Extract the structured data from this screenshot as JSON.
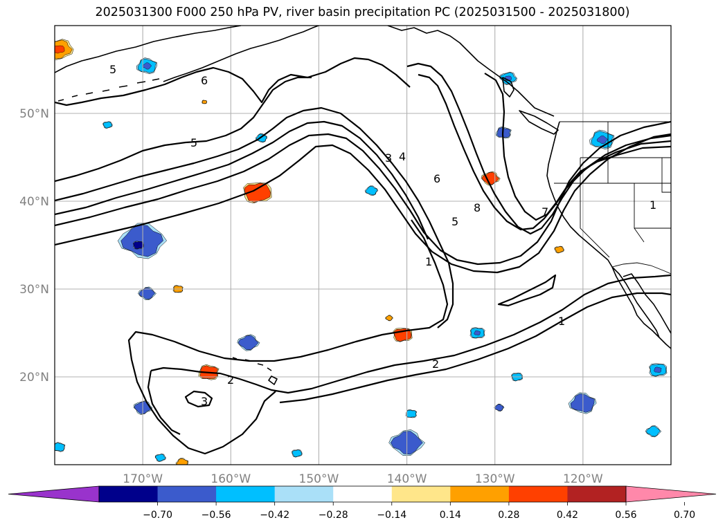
{
  "title": "2025031300 F000 250 hPa PV, river basin precipitation PC (2025031500 - 2025031800)",
  "map": {
    "lon_range": [
      -180,
      -110
    ],
    "lat_range": [
      10,
      60
    ],
    "lat_ticks": [
      {
        "value": 20,
        "label": "20°N"
      },
      {
        "value": 30,
        "label": "30°N"
      },
      {
        "value": 40,
        "label": "40°N"
      },
      {
        "value": 50,
        "label": "50°N"
      }
    ],
    "lon_ticks": [
      {
        "value": -170,
        "label": "170°W"
      },
      {
        "value": -160,
        "label": "160°W"
      },
      {
        "value": -150,
        "label": "150°W"
      },
      {
        "value": -140,
        "label": "140°W"
      },
      {
        "value": -130,
        "label": "130°W"
      },
      {
        "value": -120,
        "label": "120°W"
      }
    ],
    "gridlines": true,
    "tick_color": "#808080"
  },
  "pv_contour_labels": [
    "5",
    "6",
    "5",
    "3",
    "4",
    "6",
    "8",
    "5",
    "1",
    "7",
    "1",
    "2",
    "1",
    "2",
    "3"
  ],
  "colorbar": {
    "ticks": [
      "−0.70",
      "−0.56",
      "−0.42",
      "−0.28",
      "−0.14",
      "0.14",
      "0.28",
      "0.42",
      "0.56",
      "0.70"
    ],
    "colors": [
      "#9933cc",
      "#00008b",
      "#3b5bcc",
      "#00bfff",
      "#aae0f8",
      "#ffffff",
      "#ffe68a",
      "#ffa000",
      "#ff4000",
      "#b22222",
      "#ff88aa"
    ],
    "extend": "both"
  },
  "blobs": [
    {
      "lon": -179.5,
      "lat": 57.3,
      "level": 7,
      "size": 1.3
    },
    {
      "lon": -169.5,
      "lat": 55.4,
      "level": 3,
      "size": 1.0
    },
    {
      "lon": -174,
      "lat": 48.7,
      "level": 3,
      "size": 0.45
    },
    {
      "lon": -156.5,
      "lat": 47.2,
      "level": 3,
      "size": 0.55
    },
    {
      "lon": -157,
      "lat": 41.0,
      "level": 8,
      "size": 1.4
    },
    {
      "lon": -170,
      "lat": 35.5,
      "level": 2,
      "size": 2.2
    },
    {
      "lon": -170.5,
      "lat": 35.0,
      "level": 1,
      "size": 0.55
    },
    {
      "lon": -169.5,
      "lat": 29.5,
      "level": 2,
      "size": 0.8
    },
    {
      "lon": -166,
      "lat": 30.0,
      "level": 7,
      "size": 0.5
    },
    {
      "lon": -158,
      "lat": 23.9,
      "level": 2,
      "size": 1.0
    },
    {
      "lon": -162.5,
      "lat": 20.5,
      "level": 8,
      "size": 1.0
    },
    {
      "lon": -170,
      "lat": 16.5,
      "level": 2,
      "size": 0.85
    },
    {
      "lon": -179.5,
      "lat": 12.0,
      "level": 3,
      "size": 0.6
    },
    {
      "lon": -168,
      "lat": 10.8,
      "level": 3,
      "size": 0.5
    },
    {
      "lon": -165.5,
      "lat": 10.2,
      "level": 7,
      "size": 0.6
    },
    {
      "lon": -152.5,
      "lat": 11.3,
      "level": 3,
      "size": 0.5
    },
    {
      "lon": -144,
      "lat": 41.2,
      "level": 3,
      "size": 0.6
    },
    {
      "lon": -140.5,
      "lat": 24.8,
      "level": 8,
      "size": 0.95
    },
    {
      "lon": -142,
      "lat": 26.7,
      "level": 7,
      "size": 0.35
    },
    {
      "lon": -132,
      "lat": 25.0,
      "level": 3,
      "size": 0.75
    },
    {
      "lon": -140,
      "lat": 12.5,
      "level": 2,
      "size": 1.6
    },
    {
      "lon": -139.5,
      "lat": 15.8,
      "level": 3,
      "size": 0.55
    },
    {
      "lon": -130.5,
      "lat": 42.6,
      "level": 8,
      "size": 0.85
    },
    {
      "lon": -129,
      "lat": 47.8,
      "level": 2,
      "size": 0.75
    },
    {
      "lon": -128.5,
      "lat": 54.0,
      "level": 3,
      "size": 0.8
    },
    {
      "lon": -117.8,
      "lat": 47.0,
      "level": 3,
      "size": 1.2
    },
    {
      "lon": -122.7,
      "lat": 34.5,
      "level": 7,
      "size": 0.45
    },
    {
      "lon": -120,
      "lat": 17.0,
      "level": 2,
      "size": 1.3
    },
    {
      "lon": -127.5,
      "lat": 20.0,
      "level": 3,
      "size": 0.55
    },
    {
      "lon": -129.5,
      "lat": 16.5,
      "level": 2,
      "size": 0.45
    },
    {
      "lon": -111.5,
      "lat": 20.8,
      "level": 3,
      "size": 0.9
    },
    {
      "lon": -112,
      "lat": 13.8,
      "level": 3,
      "size": 0.7
    },
    {
      "lon": -163,
      "lat": 51.3,
      "level": 7,
      "size": 0.25
    }
  ]
}
